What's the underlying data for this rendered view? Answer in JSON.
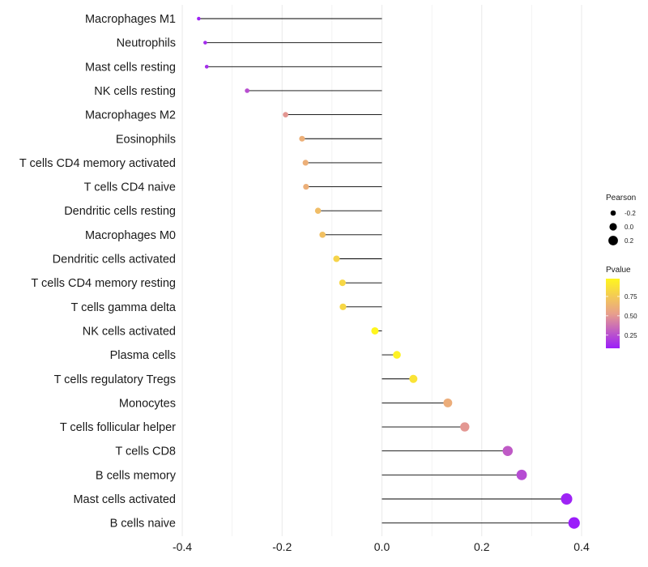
{
  "chart_data": {
    "type": "lollipop",
    "title": "",
    "xlabel": "",
    "ylabel": "",
    "xlim": [
      -0.4,
      0.4
    ],
    "xticks": [
      -0.4,
      -0.2,
      0.0,
      0.2,
      0.4
    ],
    "xtick_labels": [
      "-0.4",
      "-0.2",
      "0.0",
      "0.2",
      "0.4"
    ],
    "grid": "vertical",
    "categories": [
      "Macrophages M1",
      "Neutrophils",
      "Mast cells resting",
      "NK cells resting",
      "Macrophages M2",
      "Eosinophils",
      "T cells CD4 memory activated",
      "T cells CD4 naive",
      "Dendritic cells resting",
      "Macrophages M0",
      "Dendritic cells activated",
      "T cells CD4 memory resting",
      "T cells gamma delta",
      "NK cells activated",
      "Plasma cells",
      "T cells regulatory  Tregs",
      "Monocytes",
      "T cells follicular helper",
      "T cells CD8",
      "B cells memory",
      "Mast cells activated",
      "B cells naive"
    ],
    "pearson": [
      -0.367,
      -0.354,
      -0.351,
      -0.27,
      -0.193,
      -0.16,
      -0.153,
      -0.152,
      -0.128,
      -0.119,
      -0.091,
      -0.079,
      -0.078,
      -0.014,
      0.03,
      0.063,
      0.132,
      0.166,
      0.252,
      0.28,
      0.37,
      0.385
    ],
    "pvalue": [
      0.1,
      0.13,
      0.14,
      0.25,
      0.5,
      0.61,
      0.61,
      0.61,
      0.68,
      0.7,
      0.8,
      0.82,
      0.82,
      0.98,
      0.96,
      0.88,
      0.6,
      0.5,
      0.29,
      0.24,
      0.1,
      0.08
    ],
    "legend": {
      "size_title": "Pearson",
      "size_labels": [
        "-0.2",
        "0.0",
        "0.2"
      ],
      "size_values": [
        -0.2,
        0.0,
        0.2
      ],
      "color_title": "Pvalue",
      "color_ticks": [
        0.75,
        0.5,
        0.25
      ],
      "color_tick_labels": [
        "0.75",
        "0.50",
        "0.25"
      ],
      "color_range": [
        0.08,
        0.98
      ],
      "low_color": "#9b1dfa",
      "mid_color": "#e8a08b",
      "high_color": "#fff61e"
    },
    "grid_color": "#ebebeb",
    "segment_color": "#000000"
  }
}
